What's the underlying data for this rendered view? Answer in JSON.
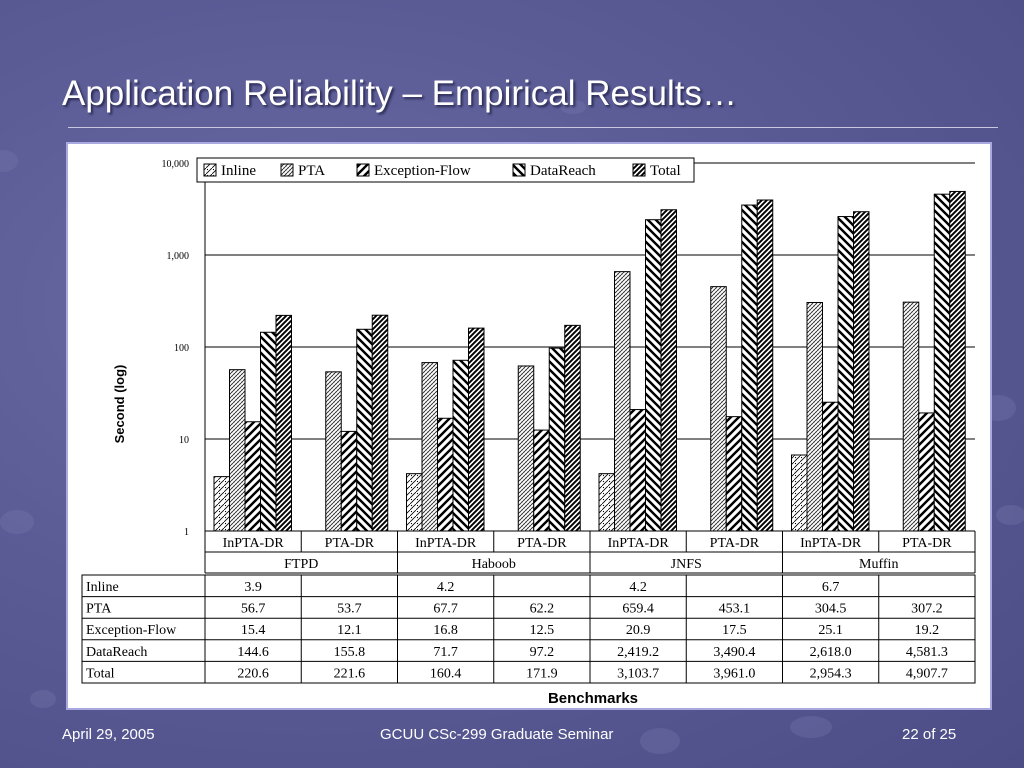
{
  "slide": {
    "title": "Application Reliability – Empirical Results…",
    "footer_date": "April 29, 2005",
    "footer_center": "GCUU CSc-299 Graduate Seminar",
    "footer_page": "22 of 25"
  },
  "chart_data": {
    "type": "bar",
    "scale": "log",
    "ylabel": "Second (log)",
    "xlabel": "Benchmarks",
    "ylim": [
      1,
      10000
    ],
    "yticks": [
      "1",
      "10",
      "100",
      "1,000",
      "10,000"
    ],
    "legend_position": "top",
    "grid": true,
    "groups": [
      "FTPD",
      "Haboob",
      "JNFS",
      "Muffin"
    ],
    "categories": [
      "InPTA-DR",
      "PTA-DR",
      "InPTA-DR",
      "PTA-DR",
      "InPTA-DR",
      "PTA-DR",
      "InPTA-DR",
      "PTA-DR"
    ],
    "series": [
      {
        "name": "Inline",
        "values": [
          3.9,
          null,
          4.2,
          null,
          4.2,
          null,
          6.7,
          null
        ],
        "labels": [
          "3.9",
          "",
          "4.2",
          "",
          "4.2",
          "",
          "6.7",
          ""
        ]
      },
      {
        "name": "PTA",
        "values": [
          56.7,
          53.7,
          67.7,
          62.2,
          659.4,
          453.1,
          304.5,
          307.2
        ],
        "labels": [
          "56.7",
          "53.7",
          "67.7",
          "62.2",
          "659.4",
          "453.1",
          "304.5",
          "307.2"
        ]
      },
      {
        "name": "Exception-Flow",
        "values": [
          15.4,
          12.1,
          16.8,
          12.5,
          20.9,
          17.5,
          25.1,
          19.2
        ],
        "labels": [
          "15.4",
          "12.1",
          "16.8",
          "12.5",
          "20.9",
          "17.5",
          "25.1",
          "19.2"
        ]
      },
      {
        "name": "DataReach",
        "values": [
          144.6,
          155.8,
          71.7,
          97.2,
          2419.2,
          3490.4,
          2618.0,
          4581.3
        ],
        "labels": [
          "144.6",
          "155.8",
          "71.7",
          "97.2",
          "2,419.2",
          "3,490.4",
          "2,618.0",
          "4,581.3"
        ]
      },
      {
        "name": "Total",
        "values": [
          220.6,
          221.6,
          160.4,
          171.9,
          3103.7,
          3961.0,
          2954.3,
          4907.7
        ],
        "labels": [
          "220.6",
          "221.6",
          "160.4",
          "171.9",
          "3,103.7",
          "3,961.0",
          "2,954.3",
          "4,907.7"
        ]
      }
    ]
  }
}
